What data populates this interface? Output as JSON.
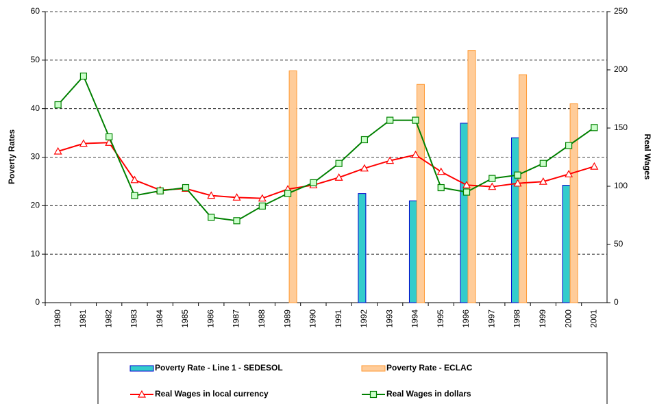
{
  "chart_data": {
    "type": "bar-line",
    "y_label": "Poverty Rates",
    "y2_label": "Real Wages",
    "categories": [
      "1980",
      "1981",
      "1982",
      "1983",
      "1984",
      "1985",
      "1986",
      "1987",
      "1988",
      "1989",
      "1990",
      "1991",
      "1992",
      "1993",
      "1994",
      "1995",
      "1996",
      "1997",
      "1998",
      "1999",
      "2000",
      "2001"
    ],
    "ylim": [
      0,
      60
    ],
    "yticks": [
      0,
      10,
      20,
      30,
      40,
      50,
      60
    ],
    "y2lim": [
      0,
      250
    ],
    "y2ticks": [
      0,
      50,
      100,
      150,
      200,
      250
    ],
    "grid": true,
    "legend": "bottom",
    "series": [
      {
        "name": "Poverty Rate - Line 1 - SEDESOL",
        "kind": "bar",
        "color": "#33cccc",
        "edge": "#0000cc",
        "values": [
          null,
          null,
          null,
          null,
          null,
          null,
          null,
          null,
          null,
          null,
          null,
          null,
          22.5,
          null,
          21,
          null,
          37,
          null,
          34,
          null,
          24.2,
          null
        ]
      },
      {
        "name": "Poverty Rate - ECLAC",
        "kind": "bar",
        "color": "#ffcc99",
        "edge": "#ff9933",
        "values": [
          null,
          null,
          null,
          null,
          null,
          null,
          null,
          null,
          null,
          47.8,
          null,
          null,
          null,
          null,
          45,
          null,
          52,
          null,
          47,
          null,
          41,
          null
        ]
      },
      {
        "name": "Real Wages in local currency",
        "kind": "line",
        "axis": "y2",
        "color": "#ff0000",
        "marker": "triangle",
        "values": [
          130,
          136.7,
          137.5,
          105.4,
          96.7,
          98,
          92,
          90.4,
          89.6,
          97.5,
          101,
          107.5,
          115.4,
          122,
          127,
          112.5,
          101,
          99.6,
          102.5,
          104,
          110.4,
          117
        ]
      },
      {
        "name": "Real Wages in dollars",
        "kind": "line",
        "axis": "y2",
        "color": "#008000",
        "marker": "square",
        "values": [
          170,
          194.6,
          142.5,
          92,
          96,
          98.8,
          73.3,
          70.4,
          83,
          93.8,
          103,
          119.6,
          140,
          156.7,
          156.7,
          98.8,
          95,
          106.7,
          109.6,
          119.6,
          135,
          150.4
        ]
      }
    ]
  }
}
